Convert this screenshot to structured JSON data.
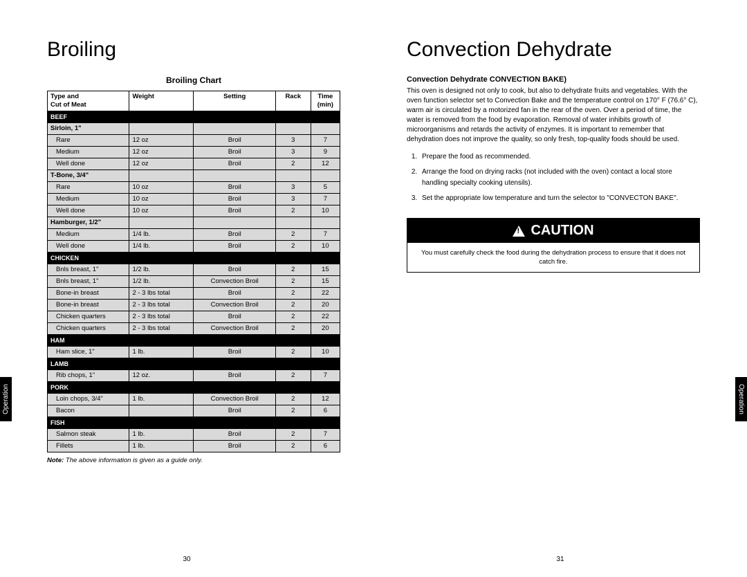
{
  "left": {
    "title": "Broiling",
    "chartTitle": "Broiling Chart",
    "sideTab": "Operation",
    "pageNum": "30",
    "headers": {
      "type": "Type and\nCut of Meat",
      "weight": "Weight",
      "setting": "Setting",
      "rack": "Rack",
      "time": "Time\n(min)"
    },
    "note": "The above information is given as a guide only.",
    "noteLabel": "Note:",
    "sections": [
      {
        "cat": "BEEF",
        "groups": [
          {
            "sub": "Sirloin, 1\"",
            "rows": [
              [
                "Rare",
                "12 oz",
                "Broil",
                "3",
                "7"
              ],
              [
                "Medium",
                "12 oz",
                "Broil",
                "3",
                "9"
              ],
              [
                "Well done",
                "12 oz",
                "Broil",
                "2",
                "12"
              ]
            ]
          },
          {
            "sub": "T-Bone, 3/4\"",
            "rows": [
              [
                "Rare",
                "10 oz",
                "Broil",
                "3",
                "5"
              ],
              [
                "Medium",
                "10 oz",
                "Broil",
                "3",
                "7"
              ],
              [
                "Well done",
                "10 oz",
                "Broil",
                "2",
                "10"
              ]
            ]
          },
          {
            "sub": "Hamburger, 1/2\"",
            "rows": [
              [
                "Medium",
                "1/4 lb.",
                "Broil",
                "2",
                "7"
              ],
              [
                "Well done",
                "1/4 lb.",
                "Broil",
                "2",
                "10"
              ]
            ]
          }
        ]
      },
      {
        "cat": "CHICKEN",
        "groups": [
          {
            "sub": null,
            "rows": [
              [
                "Bnls breast, 1\"",
                "1/2 lb.",
                "Broil",
                "2",
                "15"
              ],
              [
                "Bnls breast, 1\"",
                "1/2 lb.",
                "Convection Broil",
                "2",
                "15"
              ],
              [
                "Bone-in breast",
                "2 - 3 lbs total",
                "Broil",
                "2",
                "22"
              ],
              [
                "Bone-in breast",
                "2 - 3 lbs total",
                "Convection Broil",
                "2",
                "20"
              ],
              [
                "Chicken quarters",
                "2 - 3 lbs total",
                "Broil",
                "2",
                "22"
              ],
              [
                "Chicken quarters",
                "2 - 3 lbs total",
                "Convection Broil",
                "2",
                "20"
              ]
            ]
          }
        ]
      },
      {
        "cat": "HAM",
        "groups": [
          {
            "sub": null,
            "rows": [
              [
                "Ham slice, 1\"",
                "1 lb.",
                "Broil",
                "2",
                "10"
              ]
            ]
          }
        ]
      },
      {
        "cat": "LAMB",
        "groups": [
          {
            "sub": null,
            "rows": [
              [
                "Rib chops, 1\"",
                "12 oz.",
                "Broil",
                "2",
                "7"
              ]
            ]
          }
        ]
      },
      {
        "cat": "PORK",
        "groups": [
          {
            "sub": null,
            "rows": [
              [
                "Loin chops, 3/4\"",
                "1 lb.",
                "Convection Broil",
                "2",
                "12"
              ],
              [
                "Bacon",
                "",
                "Broil",
                "2",
                "6"
              ]
            ]
          }
        ]
      },
      {
        "cat": "FISH",
        "groups": [
          {
            "sub": null,
            "rows": [
              [
                "Salmon steak",
                "1 lb.",
                "Broil",
                "2",
                "7"
              ],
              [
                "Fillets",
                "1 lb.",
                "Broil",
                "2",
                "6"
              ]
            ]
          }
        ]
      }
    ]
  },
  "right": {
    "title": "Convection Dehydrate",
    "subtitle": "Convection Dehydrate CONVECTION BAKE)",
    "sideTab": "Operation",
    "pageNum": "31",
    "intro": "This oven is designed not only to cook, but also to dehydrate fruits and vegetables. With the oven function selector set to Convection Bake and the temperature control on 170° F (76.6° C), warm air is circulated by a motorized fan in the rear of the oven. Over a period of time, the water is removed from the food by evaporation. Removal of water inhibits growth of microorganisms and retards the activity of enzymes. It is important to remember that dehydration does not improve the quality, so only fresh, top-quality foods should be used.",
    "steps": [
      "Prepare the food as recommended.",
      "Arrange the food on drying racks (not included with the oven) contact a local store handling specialty cooking utensils).",
      "Set the appropriate low temperature and turn the selector to \"CONVECTON BAKE\"."
    ],
    "cautionLabel": "CAUTION",
    "cautionBody": "You must carefully check the food during the dehydration process to ensure that it does not catch fire."
  }
}
